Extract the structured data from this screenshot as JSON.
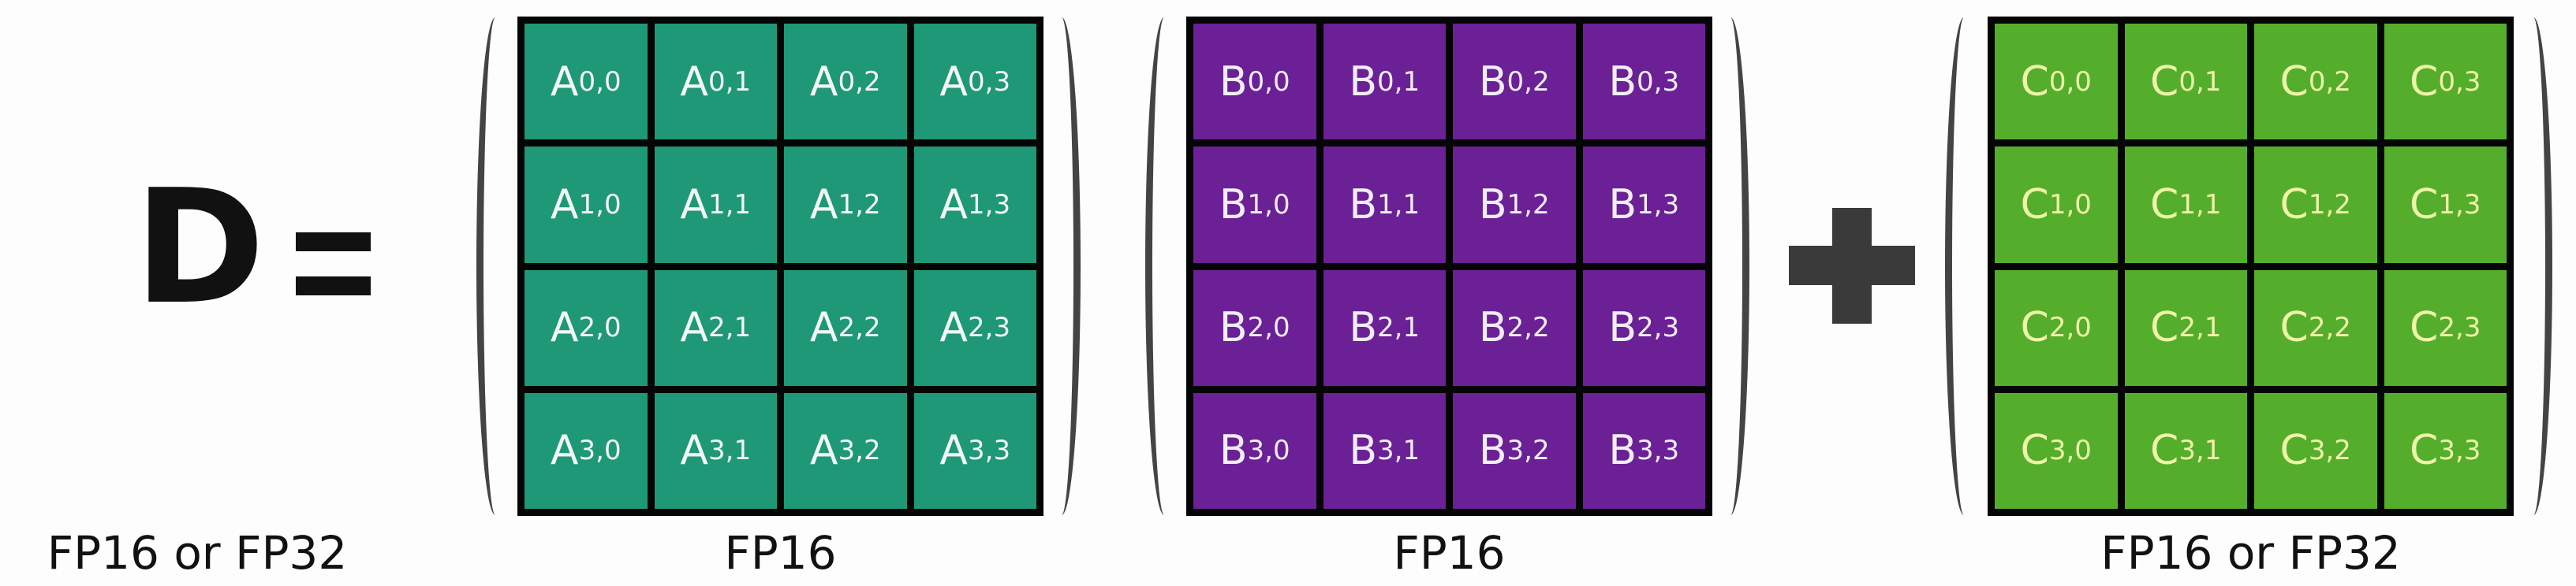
{
  "equation": {
    "result": "D",
    "equals": "=",
    "operator": "plus-icon"
  },
  "matrices": [
    {
      "name": "A",
      "label": "FP16",
      "color": "#1f9877",
      "text_color": "#f2f7f4"
    },
    {
      "name": "B",
      "label": "FP16",
      "color": "#6b2096",
      "text_color": "#f2eef7"
    },
    {
      "name": "C",
      "label": "FP16 or FP32",
      "color": "#55ae2b",
      "text_color": "#eef5a8"
    }
  ],
  "result_label": "FP16 or FP32",
  "subscripts": [
    "0,0",
    "0,1",
    "0,2",
    "0,3",
    "1,0",
    "1,1",
    "1,2",
    "1,3",
    "2,0",
    "2,1",
    "2,2",
    "2,3",
    "3,0",
    "3,1",
    "3,2",
    "3,3"
  ]
}
